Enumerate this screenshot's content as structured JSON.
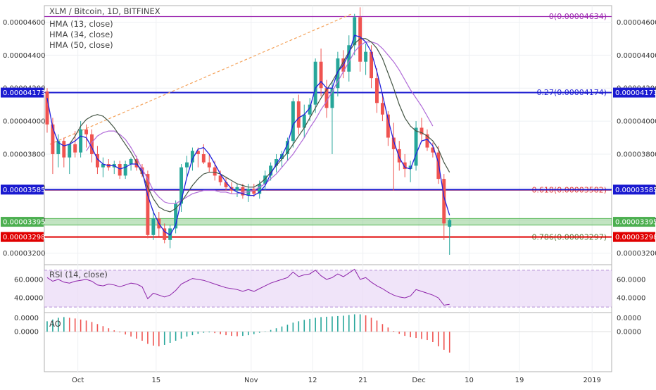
{
  "chart_data": {
    "type": "candlestick",
    "title": "XLM / Bitcoin, 1D, BITFINEX",
    "indicators": [
      "HMA (13, close)",
      "HMA (34, close)",
      "HMA (50, close)"
    ],
    "main_ticks": [
      "0.00003200",
      "0.00003400",
      "0.00003600",
      "0.00003800",
      "0.00004000",
      "0.00004200",
      "0.00004400",
      "0.00004600"
    ],
    "ylim": [
      3.13e-05,
      4.7e-05
    ],
    "x_labels": [
      {
        "label": "Oct",
        "day": 6
      },
      {
        "label": "15",
        "day": 20
      },
      {
        "label": "Nov",
        "day": 37
      },
      {
        "label": "12",
        "day": 48
      },
      {
        "label": "21",
        "day": 57
      },
      {
        "label": "Dec",
        "day": 67
      },
      {
        "label": "10",
        "day": 76
      },
      {
        "label": "19",
        "day": 85
      },
      {
        "label": "2019",
        "day": 98
      }
    ],
    "x_range": [
      0,
      101.5
    ],
    "candles": [
      [
        4.18e-05,
        4.2e-05,
        3.93e-05,
        3.98e-05
      ],
      [
        3.98e-05,
        4.02e-05,
        3.68e-05,
        3.8e-05
      ],
      [
        3.8e-05,
        3.92e-05,
        3.72e-05,
        3.88e-05
      ],
      [
        3.88e-05,
        3.9e-05,
        3.72e-05,
        3.78e-05
      ],
      [
        3.78e-05,
        3.85e-05,
        3.68e-05,
        3.86e-05
      ],
      [
        3.86e-05,
        3.94e-05,
        3.78e-05,
        3.81e-05
      ],
      [
        3.81e-05,
        4e-05,
        3.78e-05,
        3.95e-05
      ],
      [
        3.95e-05,
        3.98e-05,
        3.84e-05,
        3.92e-05
      ],
      [
        3.92e-05,
        3.95e-05,
        3.75e-05,
        3.8e-05
      ],
      [
        3.8e-05,
        3.85e-05,
        3.68e-05,
        3.72e-05
      ],
      [
        3.72e-05,
        3.78e-05,
        3.66e-05,
        3.74e-05
      ],
      [
        3.74e-05,
        3.77e-05,
        3.7e-05,
        3.72e-05
      ],
      [
        3.72e-05,
        3.76e-05,
        3.68e-05,
        3.74e-05
      ],
      [
        3.74e-05,
        3.76e-05,
        3.65e-05,
        3.67e-05
      ],
      [
        3.67e-05,
        3.76e-05,
        3.65e-05,
        3.74e-05
      ],
      [
        3.74e-05,
        3.78e-05,
        3.7e-05,
        3.77e-05
      ],
      [
        3.77e-05,
        3.79e-05,
        3.7e-05,
        3.72e-05
      ],
      [
        3.72e-05,
        3.74e-05,
        3.66e-05,
        3.68e-05
      ],
      [
        3.68e-05,
        3.7e-05,
        3.29e-05,
        3.31e-05
      ],
      [
        3.31e-05,
        3.46e-05,
        3.28e-05,
        3.41e-05
      ],
      [
        3.41e-05,
        3.45e-05,
        3.3e-05,
        3.35e-05
      ],
      [
        3.35e-05,
        3.38e-05,
        3.26e-05,
        3.28e-05
      ],
      [
        3.28e-05,
        3.37e-05,
        3.23e-05,
        3.35e-05
      ],
      [
        3.35e-05,
        3.52e-05,
        3.32e-05,
        3.5e-05
      ],
      [
        3.5e-05,
        3.74e-05,
        3.45e-05,
        3.72e-05
      ],
      [
        3.72e-05,
        3.79e-05,
        3.66e-05,
        3.75e-05
      ],
      [
        3.75e-05,
        3.84e-05,
        3.7e-05,
        3.82e-05
      ],
      [
        3.82e-05,
        3.84e-05,
        3.72e-05,
        3.8e-05
      ],
      [
        3.8e-05,
        3.86e-05,
        3.74e-05,
        3.75e-05
      ],
      [
        3.75e-05,
        3.8e-05,
        3.69e-05,
        3.72e-05
      ],
      [
        3.72e-05,
        3.76e-05,
        3.64e-05,
        3.67e-05
      ],
      [
        3.67e-05,
        3.7e-05,
        3.61e-05,
        3.63e-05
      ],
      [
        3.63e-05,
        3.66e-05,
        3.58e-05,
        3.6e-05
      ],
      [
        3.6e-05,
        3.63e-05,
        3.56e-05,
        3.58e-05
      ],
      [
        3.58e-05,
        3.62e-05,
        3.54e-05,
        3.6e-05
      ],
      [
        3.6e-05,
        3.62e-05,
        3.53e-05,
        3.55e-05
      ],
      [
        3.55e-05,
        3.62e-05,
        3.51e-05,
        3.59e-05
      ],
      [
        3.59e-05,
        3.62e-05,
        3.54e-05,
        3.56e-05
      ],
      [
        3.56e-05,
        3.64e-05,
        3.53e-05,
        3.62e-05
      ],
      [
        3.62e-05,
        3.7e-05,
        3.58e-05,
        3.67e-05
      ],
      [
        3.67e-05,
        3.75e-05,
        3.64e-05,
        3.73e-05
      ],
      [
        3.73e-05,
        3.8e-05,
        3.69e-05,
        3.77e-05
      ],
      [
        3.77e-05,
        3.82e-05,
        3.72e-05,
        3.8e-05
      ],
      [
        3.8e-05,
        3.9e-05,
        3.76e-05,
        3.88e-05
      ],
      [
        3.88e-05,
        4.14e-05,
        3.84e-05,
        4.12e-05
      ],
      [
        4.12e-05,
        4.16e-05,
        3.92e-05,
        3.96e-05
      ],
      [
        3.96e-05,
        4.1e-05,
        3.9e-05,
        4.04e-05
      ],
      [
        4.04e-05,
        4.14e-05,
        4e-05,
        4.1e-05
      ],
      [
        4.1e-05,
        4.38e-05,
        4.05e-05,
        4.36e-05
      ],
      [
        4.36e-05,
        4.44e-05,
        4.15e-05,
        4.2e-05
      ],
      [
        4.2e-05,
        4.25e-05,
        4.02e-05,
        4.08e-05
      ],
      [
        4.08e-05,
        4.24e-05,
        3.8e-05,
        4.2e-05
      ],
      [
        4.2e-05,
        4.42e-05,
        4.15e-05,
        4.38e-05
      ],
      [
        4.38e-05,
        4.43e-05,
        4.26e-05,
        4.3e-05
      ],
      [
        4.3e-05,
        4.52e-05,
        4.24e-05,
        4.46e-05
      ],
      [
        4.46e-05,
        4.65e-05,
        4.4e-05,
        4.63e-05
      ],
      [
        4.63e-05,
        4.69e-05,
        4.3e-05,
        4.36e-05
      ],
      [
        4.36e-05,
        4.47e-05,
        4.28e-05,
        4.42e-05
      ],
      [
        4.42e-05,
        4.46e-05,
        4.2e-05,
        4.26e-05
      ],
      [
        4.26e-05,
        4.32e-05,
        4.05e-05,
        4.11e-05
      ],
      [
        4.11e-05,
        4.17e-05,
        4e-05,
        4.04e-05
      ],
      [
        4.04e-05,
        4.06e-05,
        3.85e-05,
        3.9e-05
      ],
      [
        3.9e-05,
        3.99e-05,
        3.58e-05,
        3.83e-05
      ],
      [
        3.83e-05,
        3.88e-05,
        3.7e-05,
        3.75e-05
      ],
      [
        3.75e-05,
        3.8e-05,
        3.66e-05,
        3.71e-05
      ],
      [
        3.71e-05,
        3.76e-05,
        3.63e-05,
        3.73e-05
      ],
      [
        3.73e-05,
        4e-05,
        3.7e-05,
        3.96e-05
      ],
      [
        3.96e-05,
        4.02e-05,
        3.88e-05,
        3.92e-05
      ],
      [
        3.92e-05,
        3.95e-05,
        3.82e-05,
        3.84e-05
      ],
      [
        3.84e-05,
        3.87e-05,
        3.78e-05,
        3.81e-05
      ],
      [
        3.81e-05,
        3.85e-05,
        3.62e-05,
        3.65e-05
      ],
      [
        3.65e-05,
        3.68e-05,
        3.28e-05,
        3.38e-05
      ],
      [
        3.36e-05,
        3.41e-05,
        3.19e-05,
        3.4e-05
      ]
    ],
    "hma13": [
      4.14e-05,
      3.96e-05,
      3.87e-05,
      3.85e-05,
      3.86e-05,
      3.88e-05,
      3.91e-05,
      3.9e-05,
      3.84e-05,
      3.77e-05,
      3.74e-05,
      3.73e-05,
      3.73e-05,
      3.71e-05,
      3.72e-05,
      3.74e-05,
      3.74e-05,
      3.7e-05,
      3.55e-05,
      3.45e-05,
      3.38e-05,
      3.33e-05,
      3.31e-05,
      3.37e-05,
      3.52e-05,
      3.66e-05,
      3.77e-05,
      3.83e-05,
      3.84e-05,
      3.8e-05,
      3.74e-05,
      3.68e-05,
      3.63e-05,
      3.59e-05,
      3.57e-05,
      3.56e-05,
      3.55e-05,
      3.55e-05,
      3.57e-05,
      3.61e-05,
      3.68e-05,
      3.74e-05,
      3.79e-05,
      3.86e-05,
      3.98e-05,
      4.02e-05,
      4.04e-05,
      4.08e-05,
      4.2e-05,
      4.24e-05,
      4.2e-05,
      4.2e-05,
      4.3e-05,
      4.34e-05,
      4.41e-05,
      4.52e-05,
      4.51e-05,
      4.48e-05,
      4.42e-05,
      4.3e-05,
      4.16e-05,
      4.01e-05,
      3.88e-05,
      3.78e-05,
      3.72e-05,
      3.71e-05,
      3.8e-05,
      3.88e-05,
      3.89e-05,
      3.85e-05,
      3.75e-05,
      3.54e-05,
      3.43e-05
    ],
    "hma34": [
      null,
      null,
      null,
      null,
      3.86e-05,
      3.91e-05,
      3.97e-05,
      4.01e-05,
      4.03e-05,
      4.04e-05,
      4.03e-05,
      4e-05,
      3.96e-05,
      3.91e-05,
      3.86e-05,
      3.81e-05,
      3.75e-05,
      3.68e-05,
      3.6e-05,
      3.53e-05,
      3.48e-05,
      3.46e-05,
      3.45e-05,
      3.47e-05,
      3.51e-05,
      3.56e-05,
      3.61e-05,
      3.65e-05,
      3.68e-05,
      3.69e-05,
      3.69e-05,
      3.68e-05,
      3.66e-05,
      3.64e-05,
      3.62e-05,
      3.61e-05,
      3.6e-05,
      3.6e-05,
      3.62e-05,
      3.65e-05,
      3.69e-05,
      3.73e-05,
      3.77e-05,
      3.81e-05,
      3.86e-05,
      3.91e-05,
      3.96e-05,
      4.02e-05,
      4.08e-05,
      4.14e-05,
      4.19e-05,
      4.24e-05,
      4.3e-05,
      4.36e-05,
      4.42e-05,
      4.47e-05,
      4.5e-05,
      4.5e-05,
      4.48e-05,
      4.44e-05,
      4.38e-05,
      4.29e-05,
      4.2e-05,
      4.1e-05,
      4.02e-05,
      3.97e-05,
      3.94e-05,
      3.93e-05,
      3.91e-05,
      3.88e-05,
      3.83e-05,
      3.75e-05,
      3.69e-05
    ],
    "hma50": [
      null,
      null,
      null,
      null,
      null,
      null,
      null,
      3.82e-05,
      3.87e-05,
      3.91e-05,
      3.93e-05,
      3.94e-05,
      3.94e-05,
      3.92e-05,
      3.89e-05,
      3.84e-05,
      3.78e-05,
      3.71e-05,
      3.65e-05,
      3.58e-05,
      3.54e-05,
      3.51e-05,
      3.5e-05,
      3.5e-05,
      3.52e-05,
      3.54e-05,
      3.56e-05,
      3.57e-05,
      3.58e-05,
      3.58e-05,
      3.58e-05,
      3.57e-05,
      3.57e-05,
      3.56e-05,
      3.56e-05,
      3.57e-05,
      3.57e-05,
      3.58e-05,
      3.6e-05,
      3.62e-05,
      3.65e-05,
      3.68e-05,
      3.72e-05,
      3.76e-05,
      3.8e-05,
      3.85e-05,
      3.9e-05,
      3.96e-05,
      4.01e-05,
      4.07e-05,
      4.12e-05,
      4.18e-05,
      4.24e-05,
      4.3e-05,
      4.36e-05,
      4.42e-05,
      4.46e-05,
      4.48e-05,
      4.48e-05,
      4.47e-05,
      4.44e-05,
      4.4e-05,
      4.36e-05,
      4.31e-05,
      4.25e-05,
      4.19e-05,
      4.14e-05,
      4.09e-05,
      4.03e-05,
      3.97e-05
    ],
    "fib_levels": [
      {
        "label": "0(0.00004634)",
        "value": 4.634e-05,
        "color": "#9C27B0"
      },
      {
        "label": "0.27(0.00004174)",
        "value": 4.174e-05,
        "color": "#1a1ad0"
      },
      {
        "label": "0.618(0.00003582)",
        "value": 3.582e-05,
        "color": "#e53935"
      },
      {
        "label": "0.786(0.00003297)",
        "value": 3.297e-05,
        "color": "#5a7a3a"
      }
    ],
    "trendline": {
      "from": [
        1,
        3.86e-05
      ],
      "to": [
        55,
        4.65e-05
      ],
      "color": "#f4a25a"
    },
    "horizontal_lines": [
      {
        "tag": "0.00004173",
        "value": 4.173e-05,
        "color": "#1a1ad0"
      },
      {
        "tag": "0.00003585",
        "value": 3.585e-05,
        "color": "#1a1ad0"
      },
      {
        "tag": "0.00003298",
        "value": 3.298e-05,
        "color": "#e00000"
      }
    ],
    "support_zone": {
      "top": 3.41e-05,
      "bottom": 3.37e-05,
      "tag": "0.00003395",
      "color": "#8fce8f"
    },
    "rsi": {
      "label": "RSI (14, close)",
      "ticks": [
        "40.0000",
        "60.0000"
      ],
      "ylim": [
        24,
        76
      ],
      "band": [
        30,
        70
      ],
      "values": [
        62,
        58,
        60,
        57,
        56,
        58,
        59,
        60,
        58,
        54,
        53,
        55,
        54,
        52,
        54,
        56,
        55,
        52,
        39,
        45,
        43,
        41,
        43,
        48,
        55,
        58,
        61,
        60,
        59,
        57,
        55,
        53,
        51,
        50,
        49,
        47,
        49,
        47,
        50,
        53,
        56,
        58,
        60,
        62,
        68,
        63,
        65,
        66,
        70,
        64,
        60,
        62,
        66,
        63,
        67,
        71,
        60,
        62,
        57,
        53,
        50,
        46,
        43,
        41,
        40,
        42,
        49,
        47,
        45,
        43,
        40,
        32,
        33
      ]
    },
    "ao": {
      "label": "AO",
      "ticks": [
        "0.0000",
        "0.0000"
      ],
      "ylim": [
        -1.15e-06,
        5.5e-07
      ],
      "values": [
        3e-07,
        3.5e-07,
        4e-07,
        4.2e-07,
        4e-07,
        3.8e-07,
        3.5e-07,
        3.2e-07,
        2.8e-07,
        2.2e-07,
        1.6e-07,
        1e-07,
        4e-08,
        -2e-08,
        -8e-08,
        -1.4e-07,
        -2e-07,
        -2.6e-07,
        -3.5e-07,
        -4e-07,
        -4.2e-07,
        -3.8e-07,
        -3.2e-07,
        -2.6e-07,
        -2e-07,
        -1.4e-07,
        -1e-07,
        -6e-08,
        -3e-08,
        -2e-08,
        -4e-08,
        -7e-08,
        -1e-07,
        -1.2e-07,
        -1.3e-07,
        -1.2e-07,
        -1e-07,
        -7e-08,
        -3e-08,
        1e-08,
        5e-08,
        1e-07,
        1.5e-07,
        2e-07,
        2.6e-07,
        3e-07,
        3.4e-07,
        3.7e-07,
        4e-07,
        4.2e-07,
        4.3e-07,
        4.4e-07,
        4.5e-07,
        4.6e-07,
        4.8e-07,
        5e-07,
        5e-07,
        4.7e-07,
        4e-07,
        3.2e-07,
        2.2e-07,
        1.2e-07,
        2e-08,
        -6e-08,
        -1.2e-07,
        -1.6e-07,
        -1.8e-07,
        -2.1e-07,
        -2.4e-07,
        -3e-07,
        -4.2e-07,
        -5.2e-07,
        -6e-07
      ]
    }
  }
}
